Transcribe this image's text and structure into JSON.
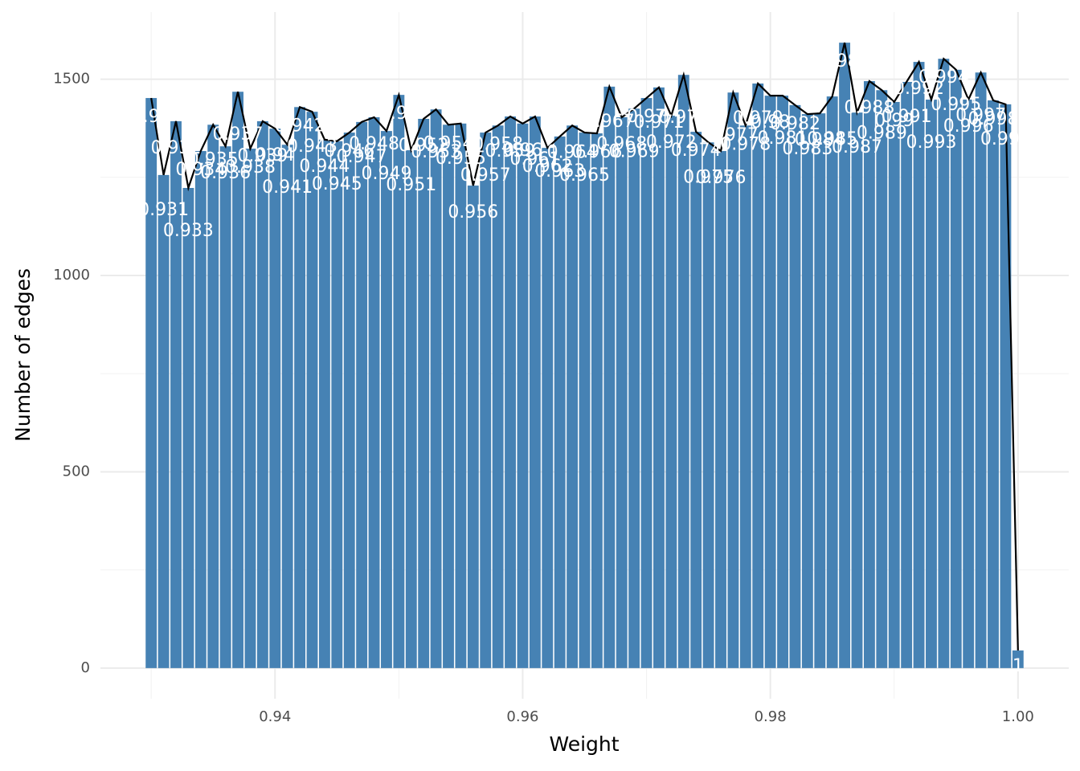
{
  "chart_data": {
    "type": "bar_line",
    "xlabel": "Weight",
    "ylabel": "Number of edges",
    "x": [
      0.93,
      0.931,
      0.932,
      0.933,
      0.934,
      0.935,
      0.936,
      0.937,
      0.938,
      0.939,
      0.94,
      0.941,
      0.942,
      0.943,
      0.944,
      0.945,
      0.946,
      0.947,
      0.948,
      0.949,
      0.95,
      0.951,
      0.952,
      0.953,
      0.954,
      0.955,
      0.956,
      0.957,
      0.958,
      0.959,
      0.96,
      0.961,
      0.962,
      0.963,
      0.964,
      0.965,
      0.966,
      0.967,
      0.968,
      0.969,
      0.97,
      0.971,
      0.972,
      0.973,
      0.974,
      0.975,
      0.976,
      0.977,
      0.978,
      0.979,
      0.98,
      0.981,
      0.982,
      0.983,
      0.984,
      0.985,
      0.986,
      0.987,
      0.988,
      0.989,
      0.99,
      0.991,
      0.992,
      0.993,
      0.994,
      0.995,
      0.996,
      0.997,
      0.998,
      0.999,
      1.0
    ],
    "values": [
      1452,
      1256,
      1393,
      1223,
      1317,
      1384,
      1329,
      1468,
      1323,
      1393,
      1374,
      1333,
      1429,
      1417,
      1346,
      1342,
      1364,
      1391,
      1403,
      1368,
      1460,
      1319,
      1399,
      1423,
      1384,
      1387,
      1229,
      1364,
      1382,
      1405,
      1387,
      1405,
      1325,
      1354,
      1382,
      1364,
      1362,
      1481,
      1403,
      1425,
      1452,
      1479,
      1407,
      1511,
      1366,
      1339,
      1317,
      1466,
      1382,
      1489,
      1458,
      1458,
      1434,
      1411,
      1413,
      1456,
      1593,
      1415,
      1495,
      1472,
      1442,
      1493,
      1544,
      1448,
      1552,
      1524,
      1448,
      1517,
      1446,
      1436,
      45
    ],
    "labels": [
      "0.93",
      "0.931",
      "0.932",
      "0.933",
      "0.934",
      "0.935",
      "0.936",
      "0.937",
      "0.938",
      "0.939",
      "0.94",
      "0.941",
      "0.942",
      "0.943",
      "0.944",
      "0.945",
      "0.946",
      "0.947",
      "0.948",
      "0.949",
      "0.95",
      "0.951",
      "0.952",
      "0.953",
      "0.954",
      "0.955",
      "0.956",
      "0.957",
      "0.958",
      "0.959",
      "0.96",
      "0.961",
      "0.962",
      "0.963",
      "0.964",
      "0.965",
      "0.966",
      "0.967",
      "0.968",
      "0.969",
      "0.97",
      "0.971",
      "0.972",
      "0.973",
      "0.974",
      "0.975",
      "0.976",
      "0.977",
      "0.978",
      "0.979",
      "0.98",
      "0.981",
      "0.982",
      "0.983",
      "0.984",
      "0.985",
      "0.986",
      "0.987",
      "0.988",
      "0.989",
      "0.99",
      "0.991",
      "0.992",
      "0.993",
      "0.994",
      "0.995",
      "0.996",
      "0.997",
      "0.998",
      "0.999",
      "1"
    ],
    "bar_color": "#4682b4",
    "line_color": "#000000",
    "label_color": "#ffffff",
    "xlim": [
      0.9259,
      1.0041
    ],
    "ylim": [
      -78,
      1671
    ],
    "xticks": [
      0.94,
      0.96,
      0.98,
      {
        "value": 1,
        "label": "1.00"
      }
    ],
    "xticks_minor": [
      0.93,
      0.95,
      0.97,
      0.99
    ],
    "yticks": [
      0,
      500,
      1000,
      1500
    ],
    "yticks_minor": [
      250,
      750,
      1250
    ],
    "grid": true
  }
}
